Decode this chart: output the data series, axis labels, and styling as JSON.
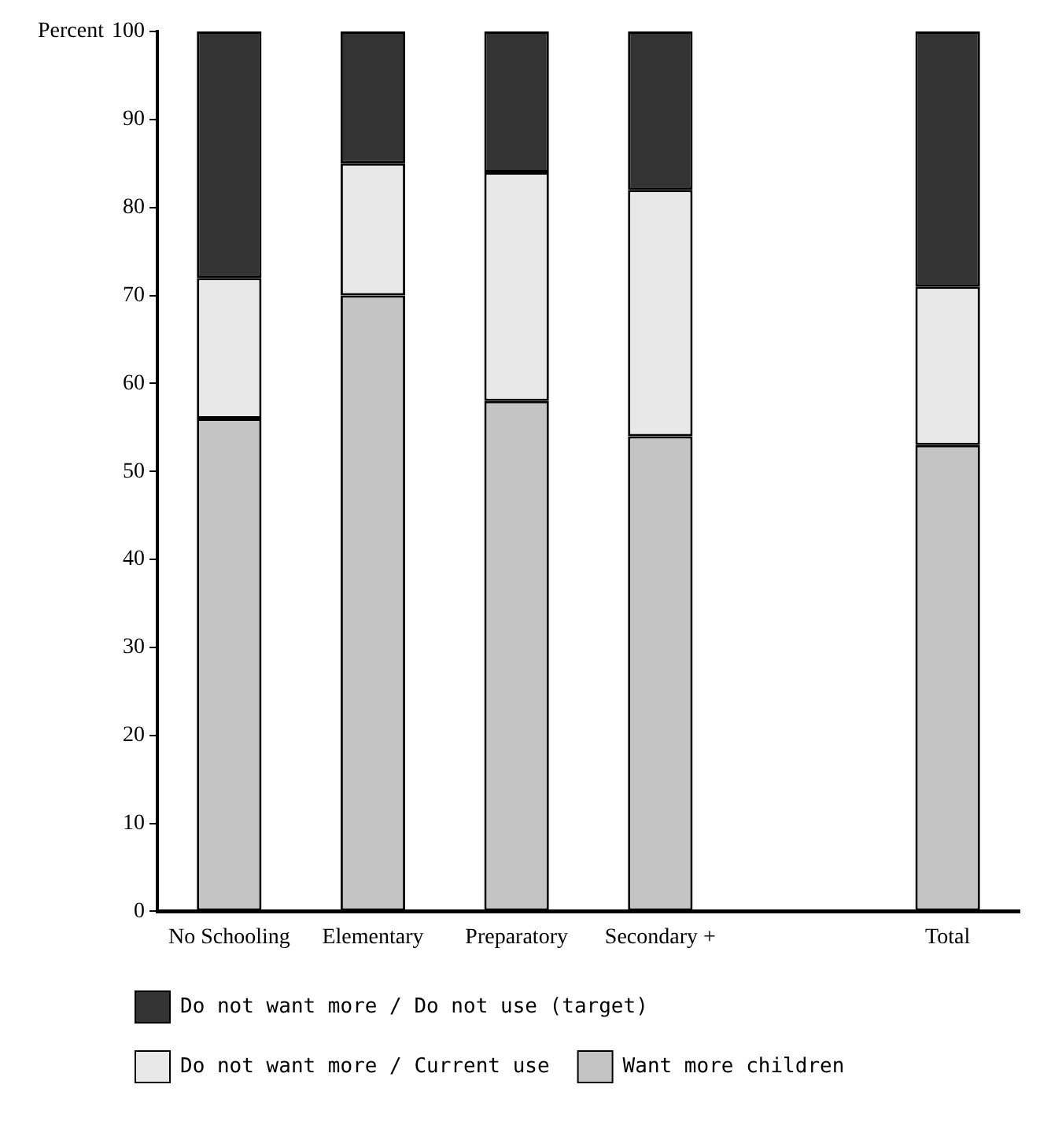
{
  "chart_data": {
    "type": "bar",
    "stacked": true,
    "ylabel": "Percent",
    "categories": [
      "No Schooling",
      "Elementary",
      "Preparatory",
      "Secondary +",
      null,
      "Total"
    ],
    "series": [
      {
        "name": "Want more children",
        "color": "#c4c4c4",
        "values": [
          56,
          70,
          58,
          54,
          null,
          53
        ]
      },
      {
        "name": "Do not want more / Current use",
        "color": "#e8e8e8",
        "values": [
          16,
          15,
          26,
          28,
          null,
          18
        ]
      },
      {
        "name": "Do not want more / Do not use (target)",
        "color": "#333333",
        "values": [
          28,
          15,
          16,
          18,
          null,
          29
        ]
      }
    ],
    "ylim": [
      0,
      100
    ],
    "yticks": [
      0,
      10,
      20,
      30,
      40,
      50,
      60,
      70,
      80,
      90,
      100
    ],
    "grid": false,
    "legend": "bottom"
  }
}
